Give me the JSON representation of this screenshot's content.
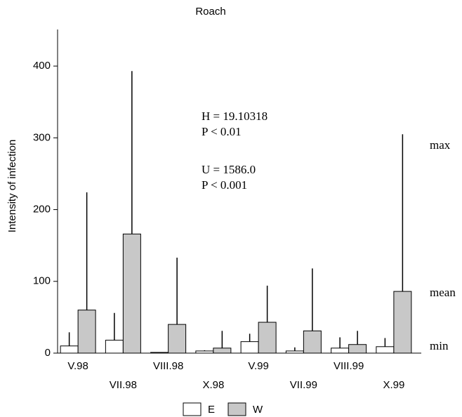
{
  "chart_data": {
    "type": "bar",
    "title": "Roach",
    "y_label": "Intensity of infection",
    "categories": [
      "V.98",
      "VII.98",
      "VIII.98",
      "X.98",
      "V.99",
      "VII.99",
      "VIII.99",
      "X.99"
    ],
    "series": [
      {
        "name": "E",
        "color": "#ffffff",
        "values": [
          10,
          18,
          1,
          3,
          16,
          3,
          7,
          9
        ],
        "max": [
          29,
          56,
          1,
          4,
          27,
          8,
          22,
          21
        ]
      },
      {
        "name": "W",
        "color": "#c8c8c8",
        "values": [
          60,
          166,
          40,
          7,
          43,
          31,
          12,
          86
        ],
        "max": [
          224,
          393,
          133,
          31,
          94,
          118,
          31,
          305
        ]
      }
    ],
    "ylim": [
      0,
      450
    ],
    "yticks": [
      0,
      100,
      200,
      300,
      400
    ],
    "stats": [
      "H = 19.10318",
      "P < 0.01",
      "U = 1586.0",
      "P < 0.001"
    ],
    "side_labels": [
      "max",
      "mean",
      "min"
    ]
  }
}
